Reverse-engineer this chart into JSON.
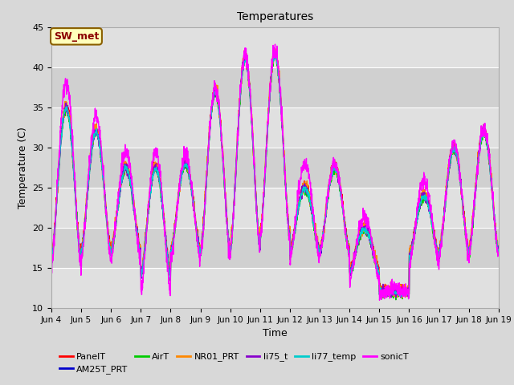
{
  "title": "Temperatures",
  "xlabel": "Time",
  "ylabel": "Temperature (C)",
  "ylim": [
    10,
    45
  ],
  "xlim": [
    0,
    15
  ],
  "fig_bg": "#d8d8d8",
  "plot_bg": "#e8e8e8",
  "annotation_text": "SW_met",
  "annotation_bg": "#ffffbb",
  "annotation_fg": "#8b0000",
  "annotation_edge": "#8b6000",
  "series_order": [
    "PanelT",
    "AM25T_PRT",
    "AirT",
    "NR01_PRT",
    "li75_t",
    "li77_temp",
    "sonicT"
  ],
  "series_colors": {
    "PanelT": "#ff0000",
    "AM25T_PRT": "#0000cc",
    "AirT": "#00cc00",
    "NR01_PRT": "#ff8800",
    "li75_t": "#8800cc",
    "li77_temp": "#00cccc",
    "sonicT": "#ff00ff"
  },
  "lw": 1.0,
  "xtick_labels": [
    "Jun 4",
    "Jun 5",
    "Jun 6",
    "Jun 7",
    "Jun 8",
    "Jun 9",
    "Jun 10",
    "Jun 11",
    "Jun 12",
    "Jun 13",
    "Jun 14",
    "Jun 15",
    "Jun 16",
    "Jun 17",
    "Jun 18",
    "Jun 19"
  ],
  "ytick_labels": [
    10,
    15,
    20,
    25,
    30,
    35,
    40,
    45
  ],
  "grid_color": "#ffffff",
  "n_days": 15,
  "pts_per_day": 144,
  "daily_maxes": [
    35,
    32,
    27.5,
    27.5,
    28,
    37,
    41,
    41.5,
    25,
    27.5,
    20,
    12,
    24,
    30,
    32
  ],
  "daily_mins": [
    16,
    17,
    17,
    14,
    17,
    17,
    17.5,
    19,
    17,
    17,
    14.5,
    12,
    16.5,
    17,
    17
  ],
  "sonic_extra_max": [
    3,
    2,
    2,
    2,
    1,
    0.5,
    0.5,
    0.5,
    3,
    0.5,
    1.5,
    0.5,
    2,
    0.5,
    0.5
  ],
  "sonic_extra_min": [
    -1,
    -1,
    -1,
    -2,
    -1,
    -0.5,
    -0.5,
    -0.5,
    -1,
    -0.5,
    -1,
    -0.5,
    -1,
    -0.5,
    -0.5
  ]
}
